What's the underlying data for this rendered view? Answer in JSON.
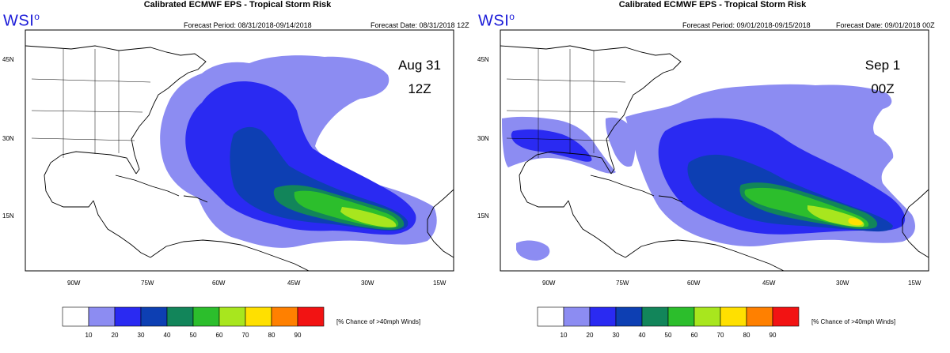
{
  "colors": {
    "bin_10_20": "#8c8cf2",
    "bin_20_30": "#2a2af2",
    "bin_30_40": "#0d3fb3",
    "bin_40_50": "#12855a",
    "bin_50_60": "#2cbe2c",
    "bin_60_70": "#a8e61e",
    "bin_70_80": "#ffe000",
    "bin_80_90": "#ff8000",
    "bin_90_100": "#f21313",
    "brand": "#1a1ad8"
  },
  "panels": [
    {
      "title": "Calibrated ECMWF EPS - Tropical Storm Risk",
      "brand": "WSI",
      "brand_mark": "o",
      "forecast_period": "Forecast Period: 08/31/2018-09/14/2018",
      "forecast_date": "Forecast Date: 08/31/2018 12Z",
      "annotation_line1": "Aug 31",
      "annotation_line2": "12Z",
      "lat_labels": [
        "45N",
        "30N",
        "15N"
      ],
      "lon_labels": [
        "90W",
        "75W",
        "60W",
        "45W",
        "30W",
        "15W"
      ]
    },
    {
      "title": "Calibrated ECMWF EPS - Tropical Storm Risk",
      "brand": "WSI",
      "brand_mark": "o",
      "forecast_period": "Forecast Period: 09/01/2018-09/15/2018",
      "forecast_date": "Forecast Date: 09/01/2018 00Z",
      "annotation_line1": "Sep 1",
      "annotation_line2": "00Z",
      "lat_labels": [
        "45N",
        "30N",
        "15N"
      ],
      "lon_labels": [
        "90W",
        "75W",
        "60W",
        "45W",
        "30W",
        "15W"
      ]
    }
  ],
  "legend": {
    "ticks": [
      "10",
      "20",
      "30",
      "40",
      "50",
      "60",
      "70",
      "80",
      "90"
    ],
    "label": "[% Chance of >40mph Winds]"
  }
}
